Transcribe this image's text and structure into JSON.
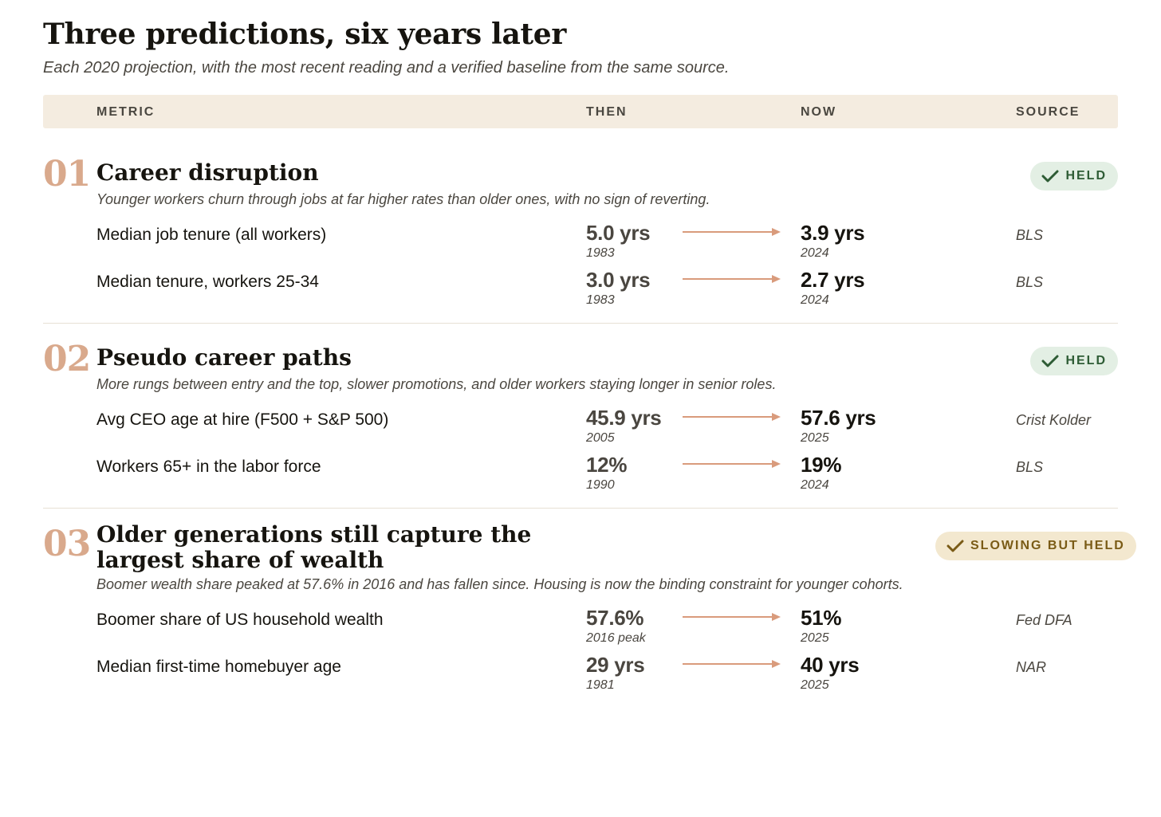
{
  "title": "Three predictions, six years later",
  "subtitle": "Each 2020 projection, with the most recent reading and a verified baseline from the same source.",
  "header": {
    "metric": "METRIC",
    "then": "THEN",
    "now": "NOW",
    "source": "SOURCE"
  },
  "colors": {
    "accent_number": "#d9a98c",
    "arrow": "#d99b7c",
    "header_bg": "#f4ece0",
    "held_bg": "#e3efe4",
    "held_text": "#2e5c35",
    "slowing_bg": "#f3e8cf",
    "slowing_text": "#7a5b16"
  },
  "sections": [
    {
      "number": "01",
      "title": "Career disruption",
      "description": "Younger workers churn through jobs at far higher rates than older ones, with no sign of reverting.",
      "badge": {
        "label": "HELD",
        "icon": "check-icon",
        "status": "held"
      },
      "rows": [
        {
          "metric": "Median job tenure (all workers)",
          "then": "5.0 yrs",
          "then_year": "1983",
          "now": "3.9 yrs",
          "now_year": "2024",
          "source": "BLS"
        },
        {
          "metric": "Median tenure, workers 25-34",
          "then": "3.0 yrs",
          "then_year": "1983",
          "now": "2.7 yrs",
          "now_year": "2024",
          "source": "BLS"
        }
      ]
    },
    {
      "number": "02",
      "title": "Pseudo career paths",
      "description": "More rungs between entry and the top, slower promotions, and older workers staying longer in senior roles.",
      "badge": {
        "label": "HELD",
        "icon": "check-icon",
        "status": "held"
      },
      "rows": [
        {
          "metric": "Avg CEO age at hire (F500 + S&P 500)",
          "then": "45.9 yrs",
          "then_year": "2005",
          "now": "57.6 yrs",
          "now_year": "2025",
          "source": "Crist Kolder"
        },
        {
          "metric": "Workers 65+ in the labor force",
          "then": "12%",
          "then_year": "1990",
          "now": "19%",
          "now_year": "2024",
          "source": "BLS"
        }
      ]
    },
    {
      "number": "03",
      "title_line1": "Older generations still capture the",
      "title_line2": "largest share of wealth",
      "description": "Boomer wealth share peaked at 57.6% in 2016 and has fallen since. Housing is now the binding constraint for younger cohorts.",
      "badge": {
        "label": "SLOWING BUT HELD",
        "icon": "check-icon",
        "status": "slowing"
      },
      "rows": [
        {
          "metric": "Boomer share of US household wealth",
          "then": "57.6%",
          "then_year": "2016 peak",
          "now": "51%",
          "now_year": "2025",
          "source": "Fed DFA"
        },
        {
          "metric": "Median first-time homebuyer age",
          "then": "29 yrs",
          "then_year": "1981",
          "now": "40 yrs",
          "now_year": "2025",
          "source": "NAR"
        }
      ]
    }
  ]
}
